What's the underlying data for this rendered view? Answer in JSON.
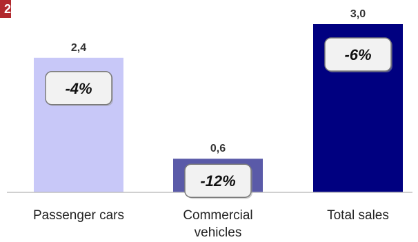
{
  "corner_badge": "2",
  "chart_data": {
    "type": "bar",
    "categories": [
      [
        "Passenger cars"
      ],
      [
        "Commercial",
        "vehicles"
      ],
      [
        "Total sales"
      ]
    ],
    "values": [
      2.4,
      0.6,
      3.0
    ],
    "value_labels": [
      "2,4",
      "0,6",
      "3,0"
    ],
    "change_labels": [
      "-4%",
      "-12%",
      "-6%"
    ],
    "bar_colors": [
      "#c8c8f8",
      "#5a5aa8",
      "#000080"
    ],
    "ylim": [
      0,
      3.0
    ],
    "grid": false,
    "legend": "none"
  }
}
